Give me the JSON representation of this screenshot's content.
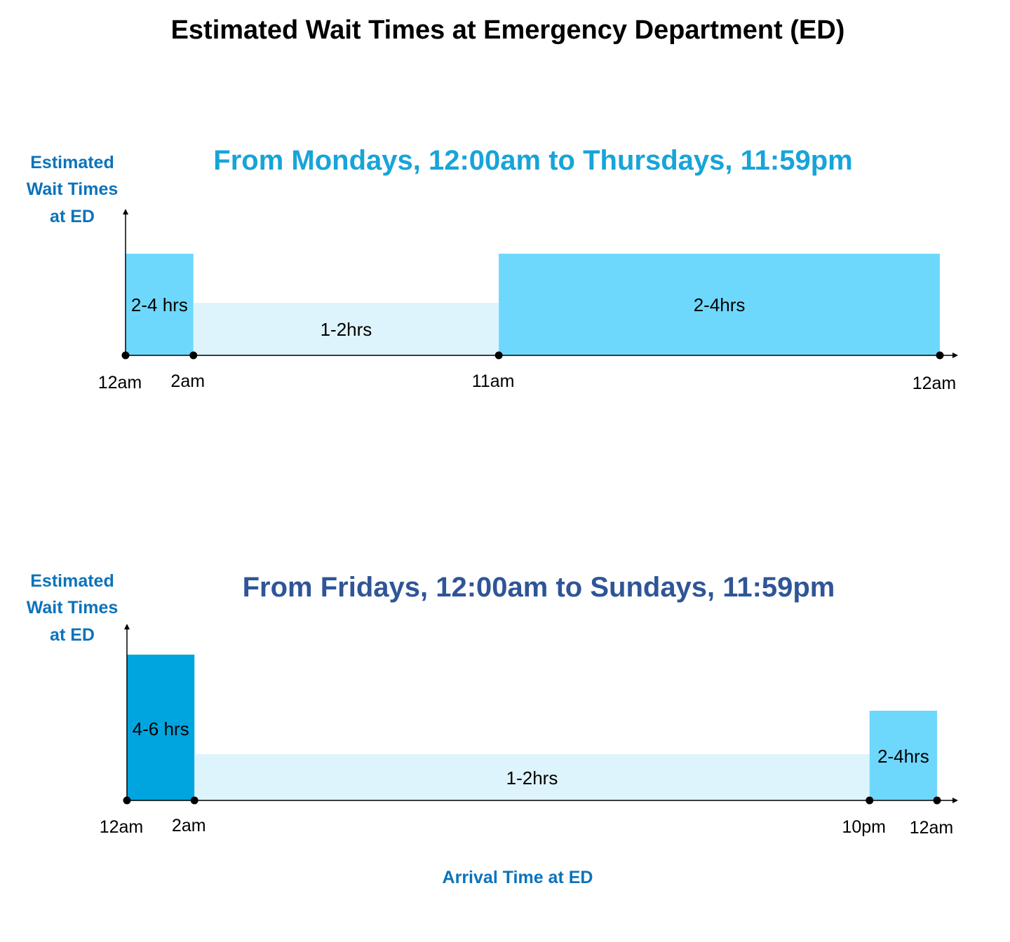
{
  "title": "Estimated Wait Times at Emergency Department (ED)",
  "colors": {
    "title": "#000000",
    "panel1_title": "#17A4D9",
    "panel2_title": "#2F5597",
    "axis_label": "#0B73BB",
    "wait_1_2": "#DDF4FC",
    "wait_2_4": "#6DD8FC",
    "wait_4_6": "#00A5E0",
    "axis": "#000000"
  },
  "chart_data": [
    {
      "type": "bar",
      "title": "From Mondays, 12:00am to Thursdays, 11:59pm",
      "ylabel_lines": [
        "Estimated",
        "Wait Times",
        "at ED"
      ],
      "xlabel": "",
      "x_unit": "hour of day",
      "xlim": [
        0,
        24
      ],
      "ticks": [
        {
          "hour": 0,
          "label": "12am"
        },
        {
          "hour": 2,
          "label": "2am"
        },
        {
          "hour": 11,
          "label": "11am"
        },
        {
          "hour": 24,
          "label": "12am"
        }
      ],
      "segments": [
        {
          "start": 0,
          "end": 2,
          "label": "2-4 hrs",
          "level": 2,
          "color_key": "wait_2_4"
        },
        {
          "start": 2,
          "end": 11,
          "label": "1-2hrs",
          "level": 1,
          "color_key": "wait_1_2"
        },
        {
          "start": 11,
          "end": 24,
          "label": "2-4hrs",
          "level": 2,
          "color_key": "wait_2_4"
        }
      ]
    },
    {
      "type": "bar",
      "title": "From Fridays, 12:00am to Sundays, 11:59pm",
      "ylabel_lines": [
        "Estimated",
        "Wait Times",
        "at ED"
      ],
      "xlabel": "Arrival Time at ED",
      "x_unit": "hour of day",
      "xlim": [
        0,
        24
      ],
      "ticks": [
        {
          "hour": 0,
          "label": "12am"
        },
        {
          "hour": 2,
          "label": "2am"
        },
        {
          "hour": 22,
          "label": "10pm"
        },
        {
          "hour": 24,
          "label": "12am"
        }
      ],
      "segments": [
        {
          "start": 0,
          "end": 2,
          "label": "4-6 hrs",
          "level": 3,
          "color_key": "wait_4_6"
        },
        {
          "start": 2,
          "end": 22,
          "label": "1-2hrs",
          "level": 1,
          "color_key": "wait_1_2"
        },
        {
          "start": 22,
          "end": 24,
          "label": "2-4hrs",
          "level": 2,
          "color_key": "wait_2_4"
        }
      ]
    }
  ]
}
